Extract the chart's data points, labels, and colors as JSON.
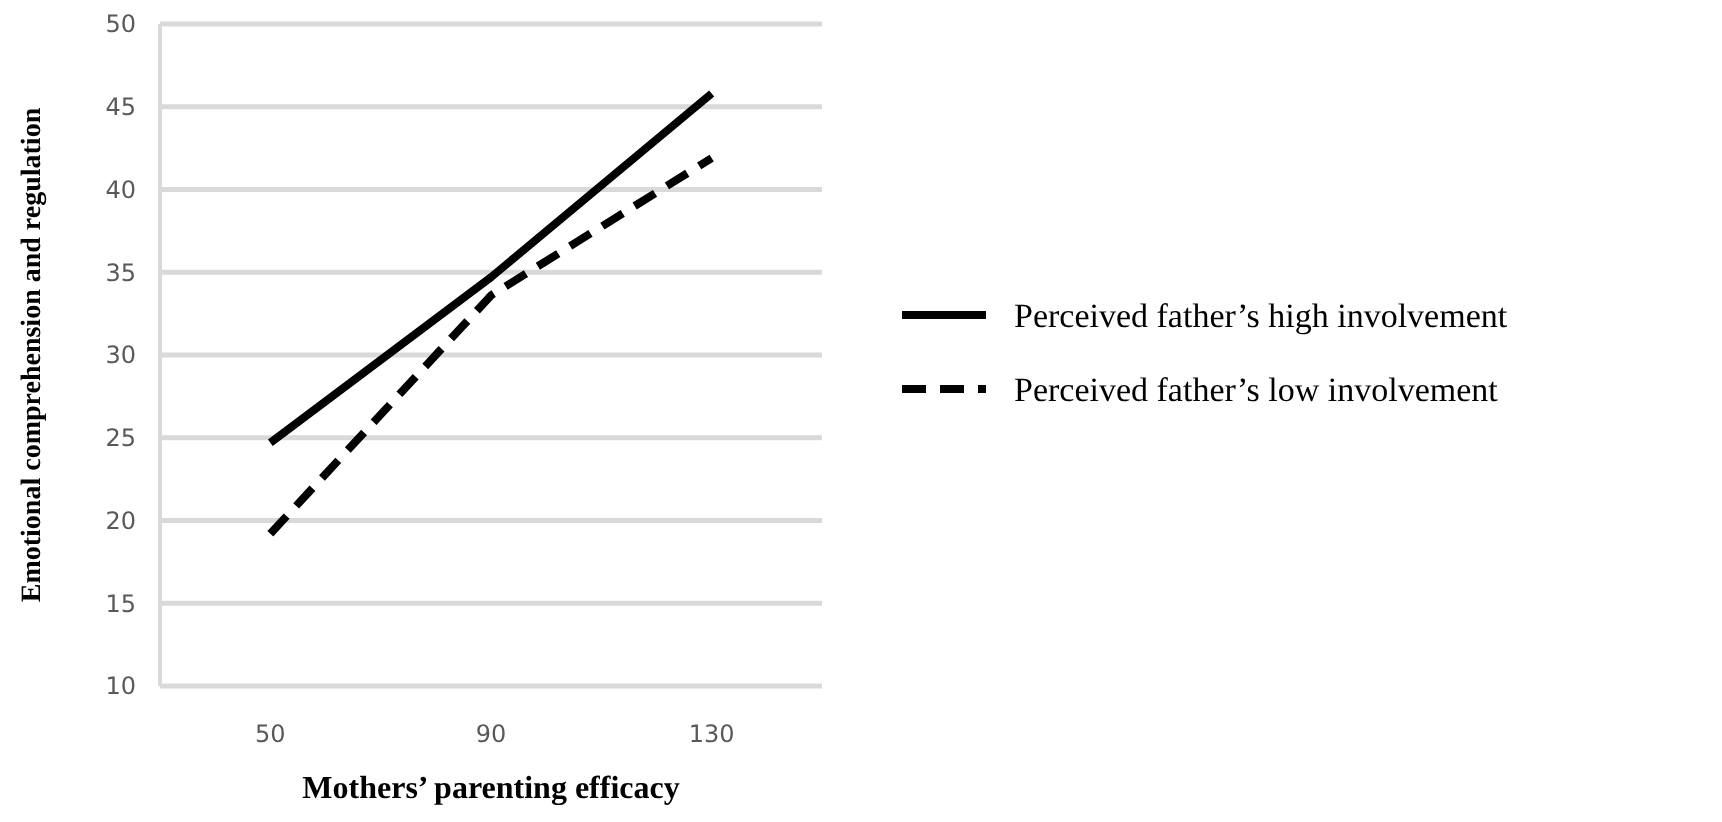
{
  "chart_data": {
    "type": "line",
    "xlabel": "Mothers’ parenting efficacy",
    "ylabel": "Emotional comprehension and regulation",
    "categories": [
      "50",
      "90",
      "130"
    ],
    "series": [
      {
        "name": "Perceived father’s high involvement",
        "color": "#000000",
        "line_style": "solid",
        "values": [
          24.7,
          34.7,
          45.8
        ]
      },
      {
        "name": "Perceived father’s low involvement",
        "color": "#000000",
        "line_style": "dashed",
        "values": [
          19.2,
          33.6,
          41.9
        ]
      }
    ],
    "ylim": [
      10,
      50
    ],
    "yticks": [
      10,
      15,
      20,
      25,
      30,
      35,
      40,
      45,
      50
    ],
    "grid": "y",
    "legend": "right",
    "marker": "none"
  }
}
